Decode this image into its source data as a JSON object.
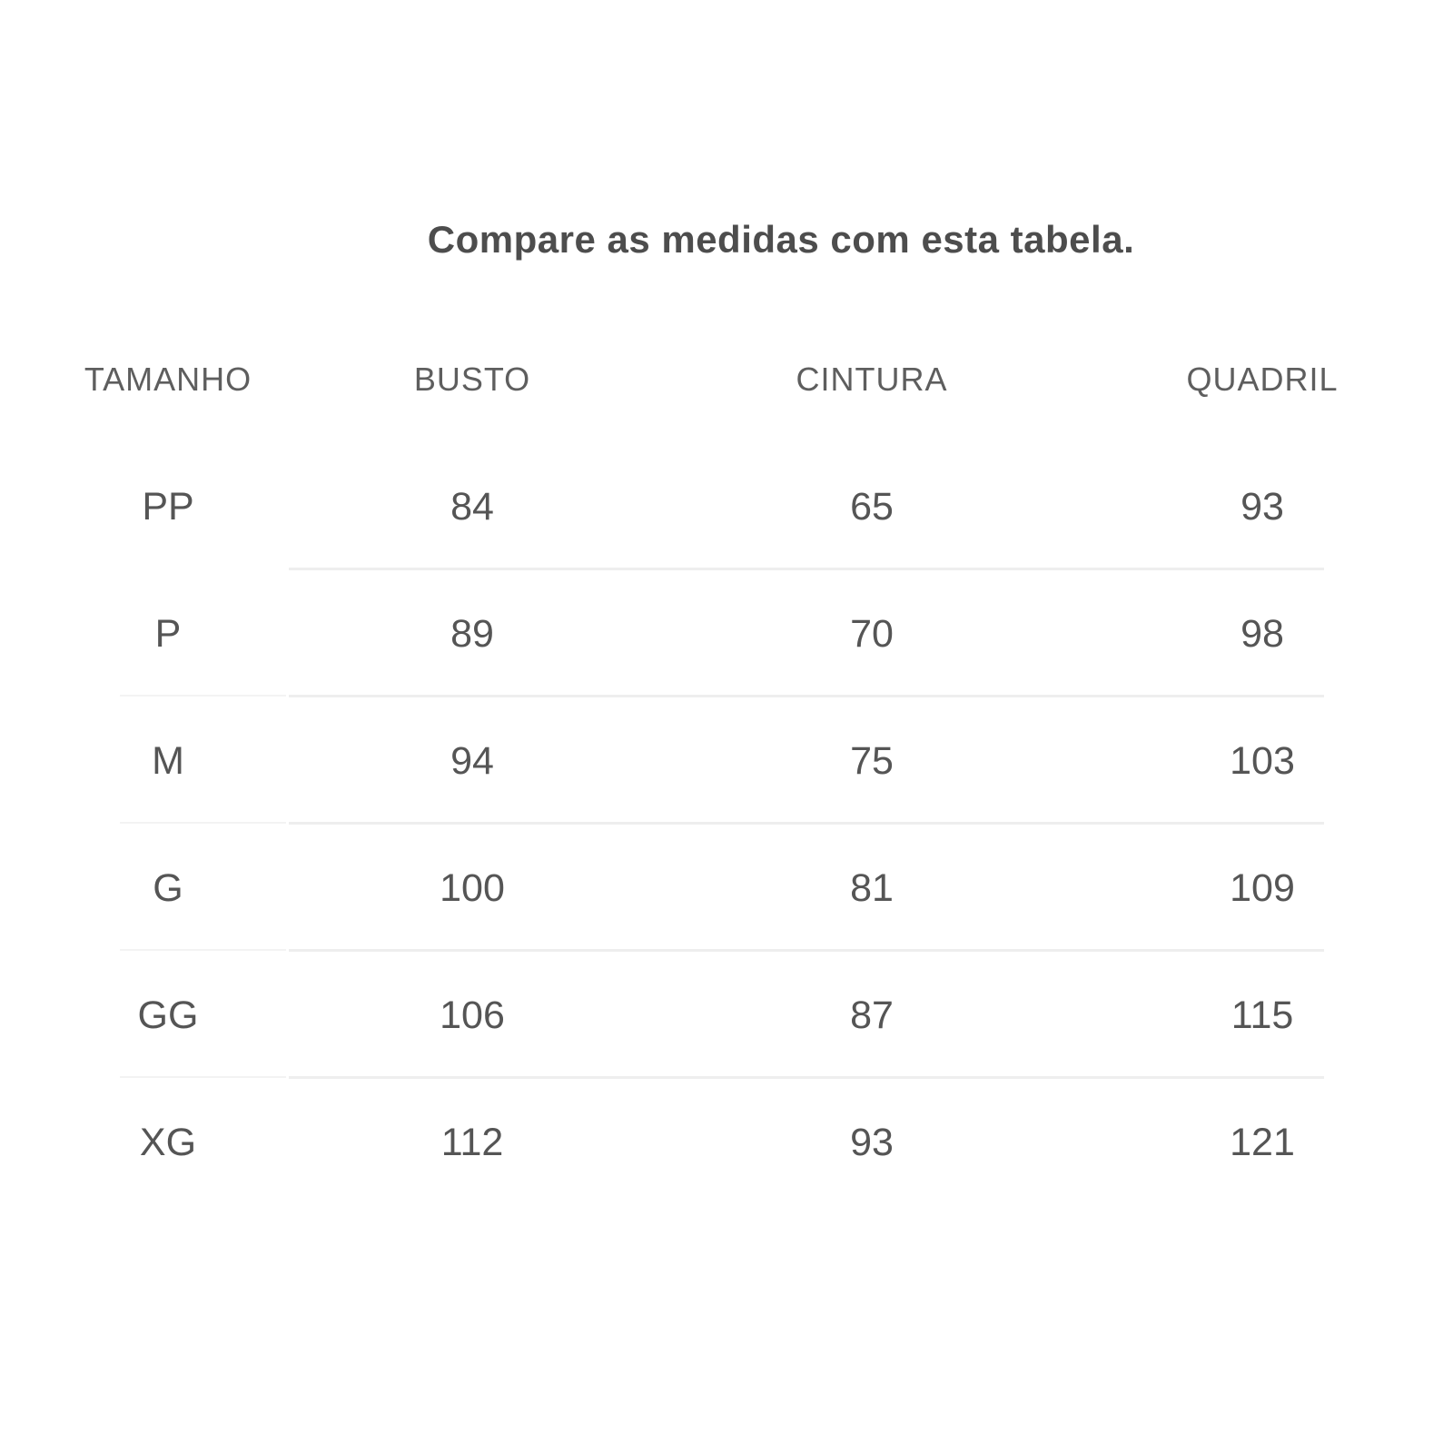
{
  "title": "Compare as medidas com esta tabela.",
  "table": {
    "columns": [
      "TAMANHO",
      "BUSTO",
      "CINTURA",
      "QUADRIL"
    ],
    "rows": [
      {
        "size": "PP",
        "busto": "84",
        "cintura": "65",
        "quadril": "93"
      },
      {
        "size": "P",
        "busto": "89",
        "cintura": "70",
        "quadril": "98"
      },
      {
        "size": "M",
        "busto": "94",
        "cintura": "75",
        "quadril": "103"
      },
      {
        "size": "G",
        "busto": "100",
        "cintura": "81",
        "quadril": "109"
      },
      {
        "size": "GG",
        "busto": "106",
        "cintura": "87",
        "quadril": "115"
      },
      {
        "size": "XG",
        "busto": "112",
        "cintura": "93",
        "quadril": "121"
      }
    ]
  },
  "chart_data": {
    "type": "table",
    "title": "Compare as medidas com esta tabela.",
    "columns": [
      "TAMANHO",
      "BUSTO",
      "CINTURA",
      "QUADRIL"
    ],
    "rows": [
      [
        "PP",
        84,
        65,
        93
      ],
      [
        "P",
        89,
        70,
        98
      ],
      [
        "M",
        94,
        75,
        103
      ],
      [
        "G",
        100,
        81,
        109
      ],
      [
        "GG",
        106,
        87,
        115
      ],
      [
        "XG",
        112,
        93,
        121
      ]
    ]
  },
  "colors": {
    "background": "#ffffff",
    "title_text": "#4d4d4d",
    "header_text": "#5e5e5e",
    "cell_text": "#555555",
    "divider": "#eeeeee",
    "divider_light": "#f3f3f3"
  }
}
